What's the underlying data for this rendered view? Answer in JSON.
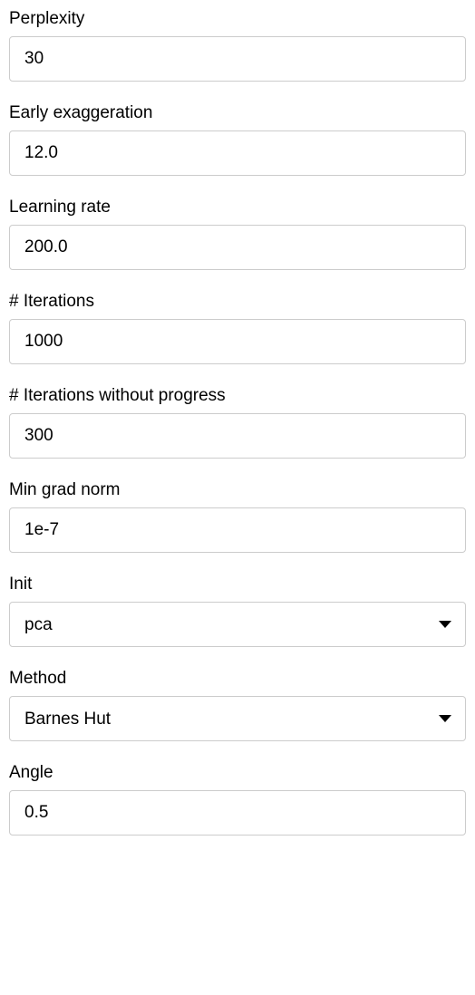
{
  "fields": {
    "perplexity": {
      "label": "Perplexity",
      "value": "30"
    },
    "early_exaggeration": {
      "label": "Early exaggeration",
      "value": "12.0"
    },
    "learning_rate": {
      "label": "Learning rate",
      "value": "200.0"
    },
    "iterations": {
      "label": "# Iterations",
      "value": "1000"
    },
    "iterations_no_progress": {
      "label": "# Iterations without progress",
      "value": "300"
    },
    "min_grad_norm": {
      "label": "Min grad norm",
      "value": "1e-7"
    },
    "init": {
      "label": "Init",
      "value": "pca"
    },
    "method": {
      "label": "Method",
      "value": "Barnes Hut"
    },
    "angle": {
      "label": "Angle",
      "value": "0.5"
    }
  },
  "style": {
    "input_border_color": "#cccccc",
    "input_border_radius": 4,
    "font_size_label": 19,
    "font_size_input": 19,
    "background_color": "#ffffff",
    "text_color": "#000000"
  }
}
